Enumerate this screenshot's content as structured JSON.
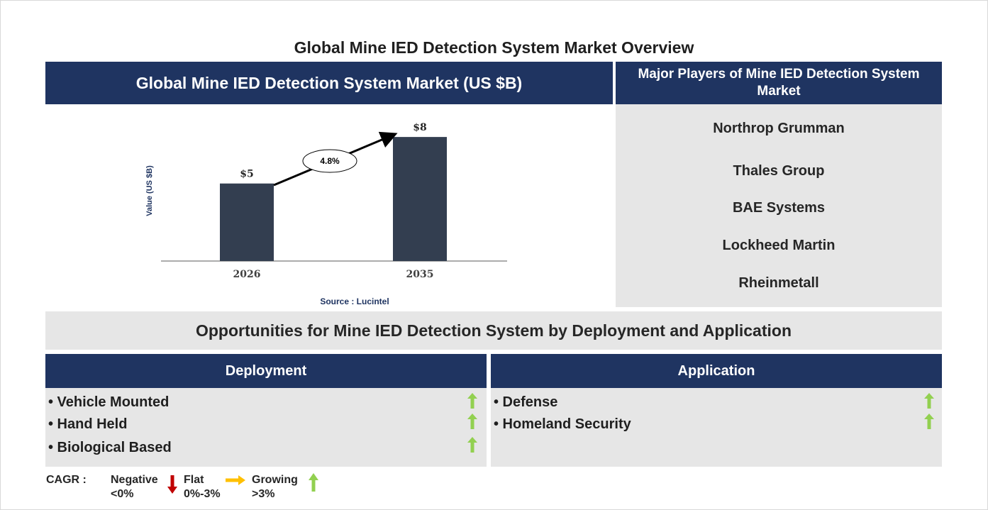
{
  "title": "Global Mine IED Detection System Market Overview",
  "chart_panel": {
    "header": "Global Mine IED Detection System Market (US $B)",
    "source": "Source : Lucintel"
  },
  "chart_data": {
    "type": "bar",
    "categories": [
      "2026",
      "2035"
    ],
    "values": [
      5,
      8
    ],
    "data_labels": [
      "$5",
      "$8"
    ],
    "ylabel": "Value (US $B)",
    "ylim": [
      0,
      8.6
    ],
    "cagr_label": "4.8%",
    "bar_color": "#333e50",
    "grid": false
  },
  "players": {
    "header": "Major Players of Mine IED Detection System Market",
    "items": [
      "Northrop Grumman",
      "Thales Group",
      "BAE Systems",
      "Lockheed Martin",
      "Rheinmetall"
    ]
  },
  "opportunities": {
    "title": "Opportunities for Mine IED Detection System by Deployment and Application"
  },
  "deployment": {
    "header": "Deployment",
    "items": [
      "• Vehicle Mounted",
      "• Hand Held",
      "• Biological Based"
    ],
    "trend_icon": "green-up-arrow-icon"
  },
  "application": {
    "header": "Application",
    "items": [
      "• Defense",
      "• Homeland Security"
    ],
    "trend_icon": "green-up-arrow-icon"
  },
  "legend": {
    "cagr_label": "CAGR :",
    "negative": "Negative",
    "negative_range": "<0%",
    "flat": "Flat",
    "flat_range": "0%-3%",
    "growing": "Growing",
    "growing_range": ">3%"
  },
  "colors": {
    "navy": "#1f3461",
    "panel_grey": "#e6e6e6",
    "up_green": "#92d050",
    "down_red": "#c00000",
    "flat_yellow": "#ffc000"
  }
}
